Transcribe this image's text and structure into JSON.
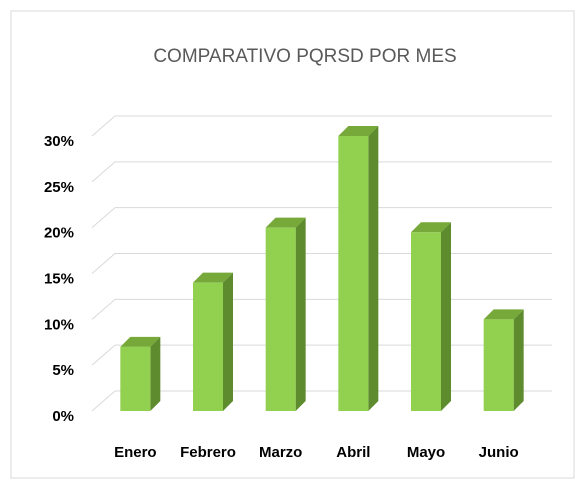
{
  "chart_data": {
    "type": "bar3d",
    "title": "COMPARATIVO PQRSD POR MES",
    "categories": [
      "Enero",
      "Febrero",
      "Marzo",
      "Abril",
      "Mayo",
      "Junio"
    ],
    "values": [
      7,
      14,
      20,
      30,
      19.5,
      10
    ],
    "color": "#92d050",
    "ylim": [
      0,
      30
    ],
    "yticks": [
      {
        "value": 0,
        "label": "0%"
      },
      {
        "value": 5,
        "label": "5%"
      },
      {
        "value": 10,
        "label": "10%"
      },
      {
        "value": 15,
        "label": "15%"
      },
      {
        "value": 20,
        "label": "20%"
      },
      {
        "value": 25,
        "label": "25%"
      },
      {
        "value": 30,
        "label": "30%"
      }
    ],
    "grid": true
  }
}
